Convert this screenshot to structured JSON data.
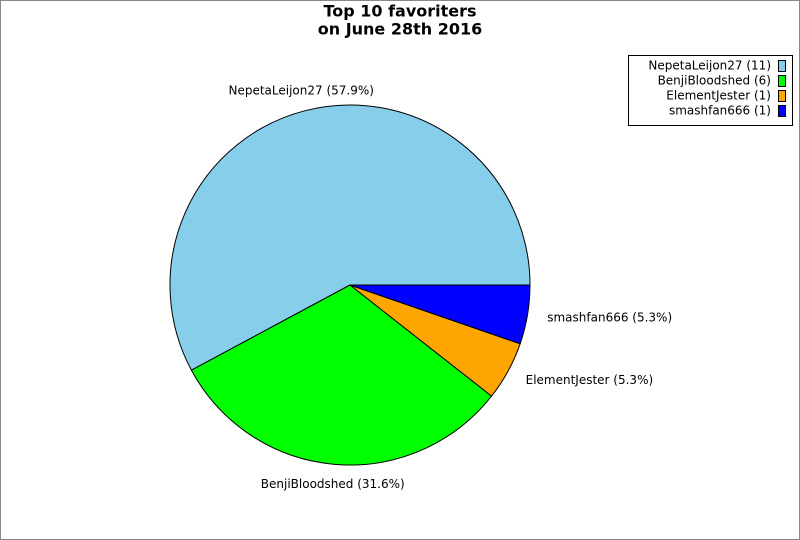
{
  "chart_data": {
    "type": "pie",
    "title": [
      "Top 10 favoriters",
      "on June 28th 2016"
    ],
    "categories": [
      "NepetaLeijon27 (11)",
      "BenjiBloodshed (6)",
      "ElementJester (1)",
      "smashfan666 (1)"
    ],
    "values": [
      57.9,
      31.6,
      5.3,
      5.3
    ],
    "value_labels": [
      "NepetaLeijon27 (57.9%)",
      "BenjiBloodshed (31.6%)",
      "ElementJester (5.3%)",
      "smashfan666 (5.3%)"
    ],
    "colors": [
      "#87ceeb",
      "#00ff00",
      "#ffa500",
      "#0000ff"
    ],
    "legend": "upper right"
  }
}
